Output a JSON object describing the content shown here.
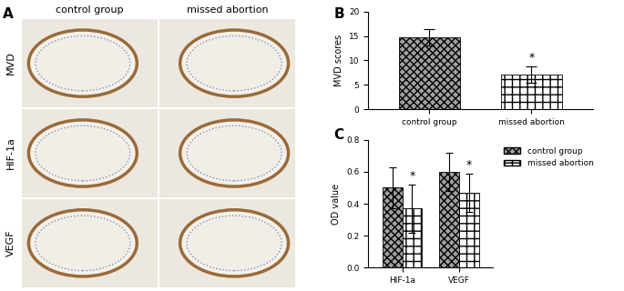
{
  "panel_a": {
    "label": "A",
    "columns": [
      "control group",
      "missed abortion"
    ],
    "rows": [
      "MVD",
      "HIF-1a",
      "VEGF"
    ]
  },
  "chart_data": [
    {
      "type": "bar",
      "panel_label": "B",
      "categories": [
        "control group",
        "missed abortion"
      ],
      "values": [
        14.8,
        7.1
      ],
      "errors": [
        1.7,
        1.7
      ],
      "colors": [
        "#a0a0a0",
        "#ffffff"
      ],
      "y_label": "MVD scores",
      "ylim": [
        0,
        20
      ],
      "yticks": [
        0,
        5,
        10,
        15,
        20
      ],
      "annotations": [
        {
          "text": "*",
          "category": "missed abortion"
        }
      ]
    },
    {
      "type": "bar",
      "panel_label": "C",
      "categories": [
        "HIF-1a",
        "VEGF"
      ],
      "series": [
        {
          "name": "control group",
          "color": "#a0a0a0",
          "values": [
            0.5,
            0.6
          ],
          "errors": [
            0.13,
            0.12
          ]
        },
        {
          "name": "missed abortion",
          "color": "#ffffff",
          "values": [
            0.37,
            0.47
          ],
          "errors": [
            0.15,
            0.12
          ]
        }
      ],
      "y_label": "OD value",
      "ylim": [
        0,
        0.8
      ],
      "yticks": [
        {
          "value": 0,
          "label": "0.0"
        },
        0.2,
        0.4,
        0.6,
        0.8
      ],
      "legend": "right",
      "annotations": [
        {
          "text": "*",
          "category": "HIF-1a",
          "series": "missed abortion"
        },
        {
          "text": "*",
          "category": "VEGF",
          "series": "missed abortion"
        }
      ]
    }
  ]
}
